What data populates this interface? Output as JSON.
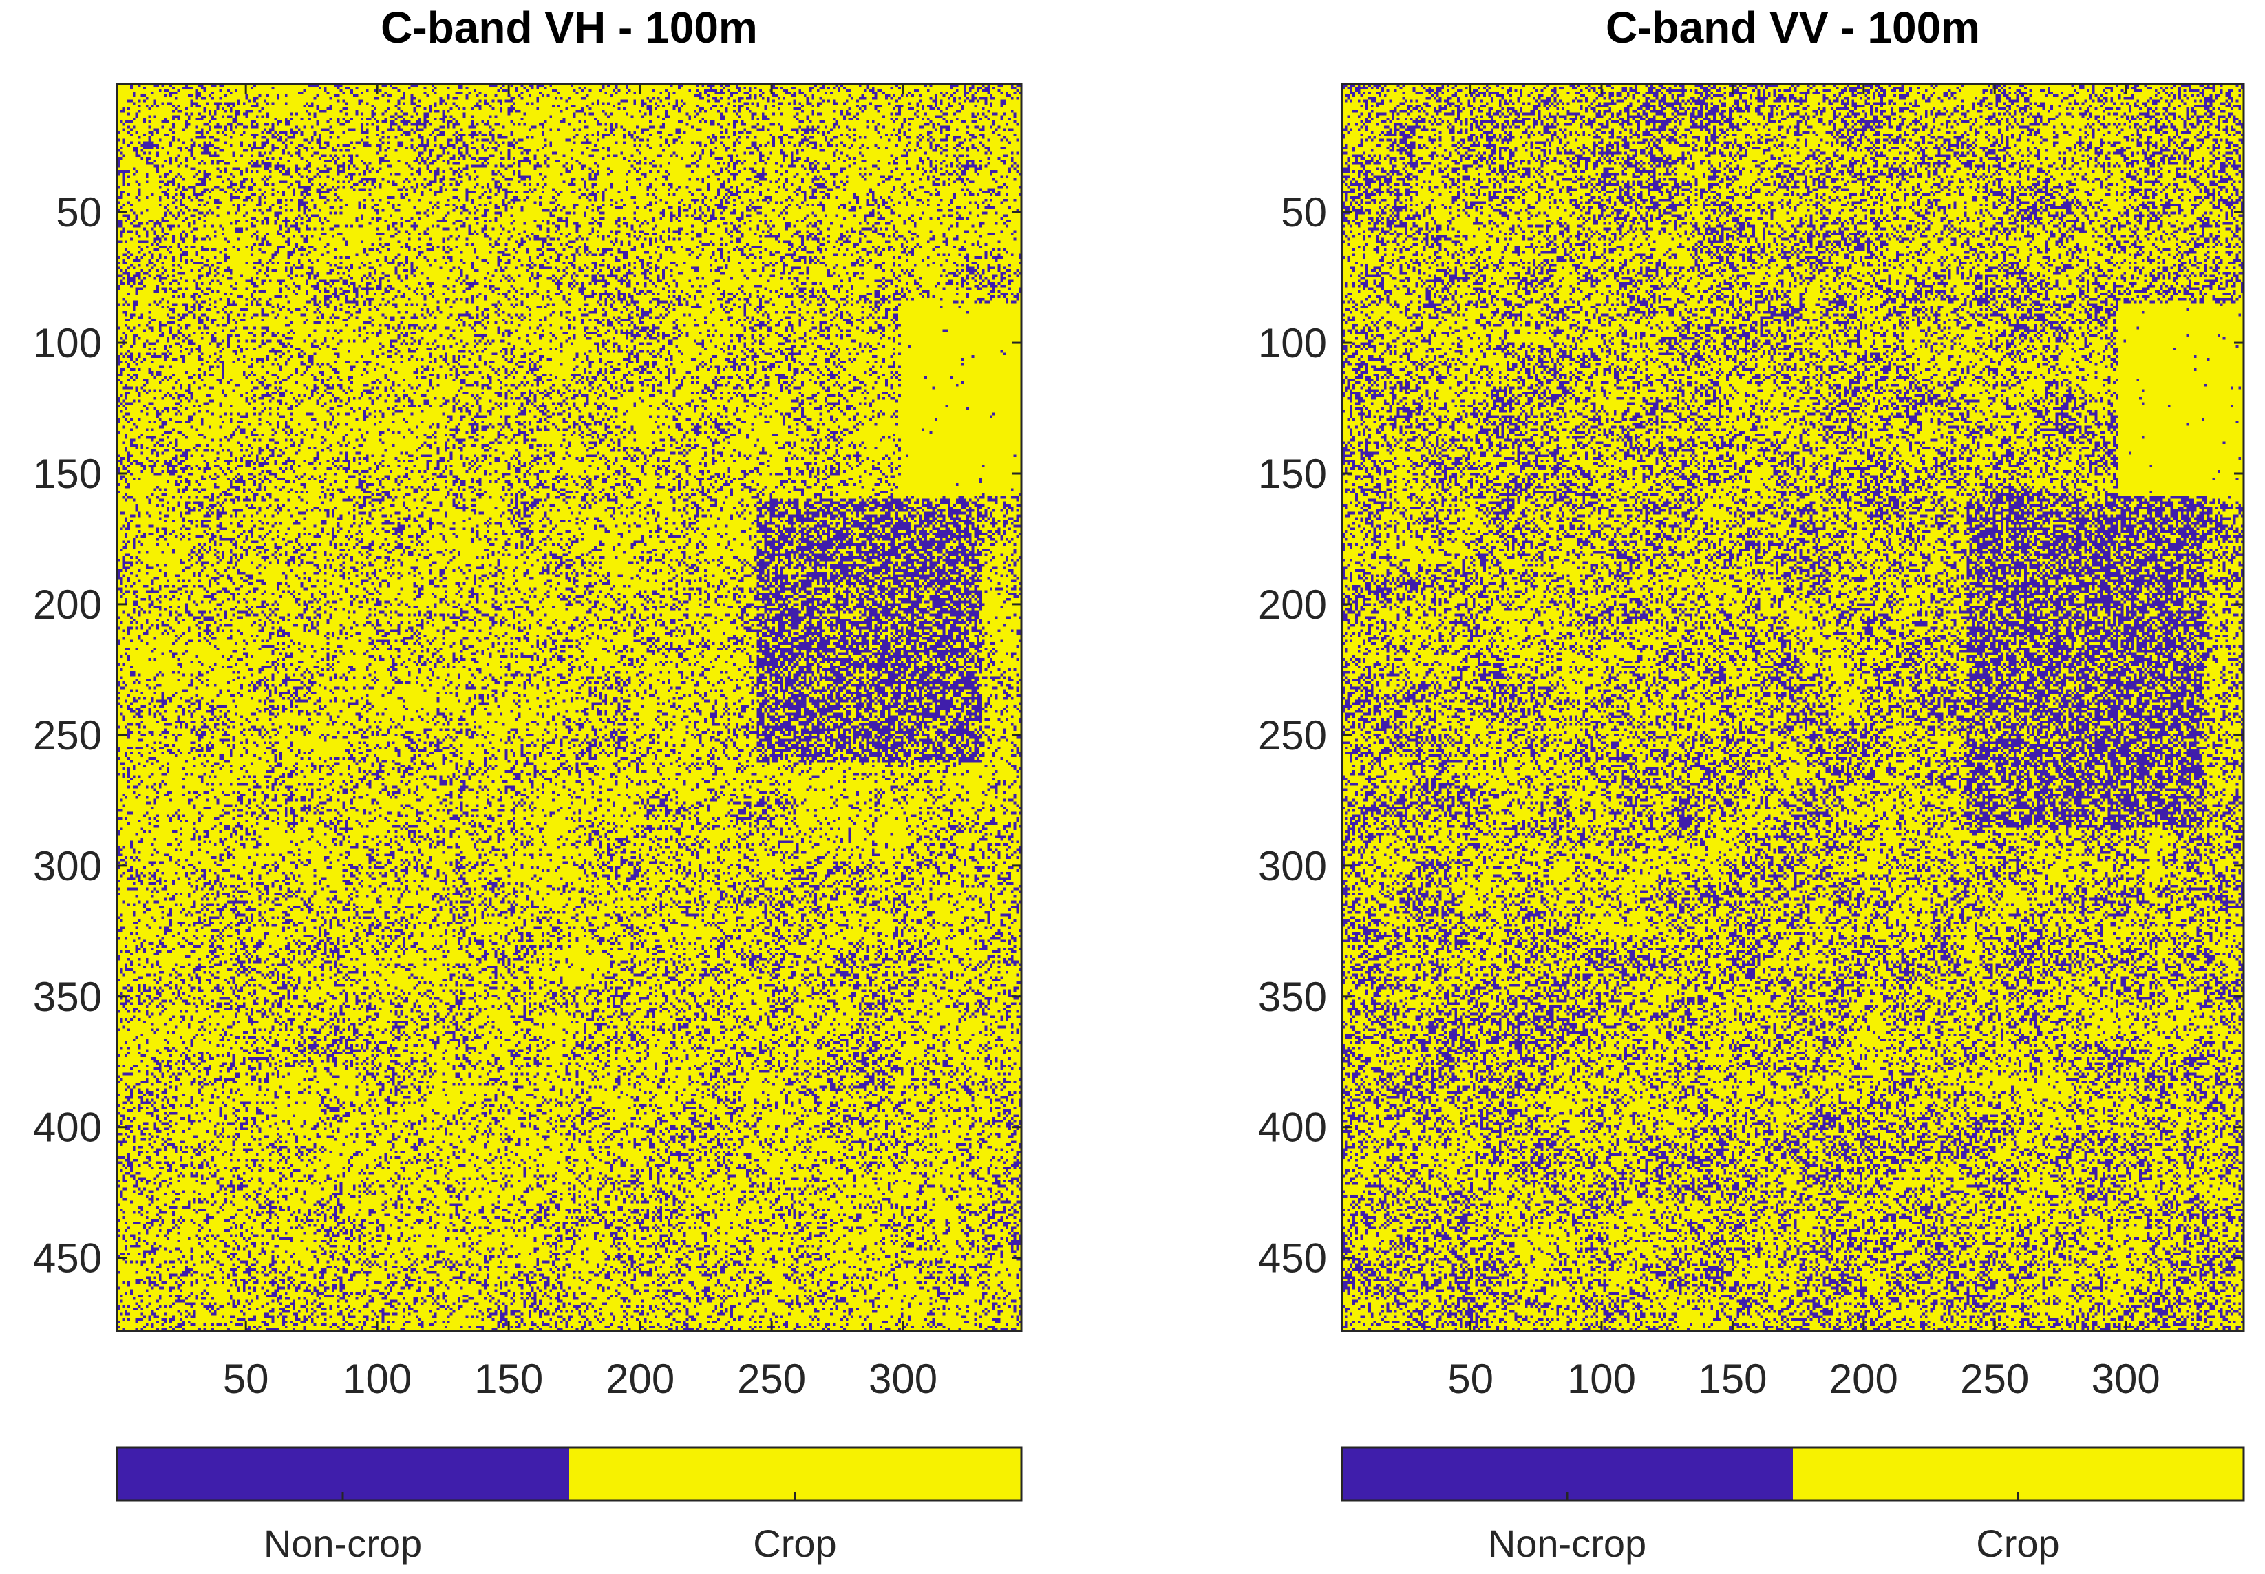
{
  "figure": {
    "colors": {
      "non_crop": "#3F1EAB",
      "crop": "#F7F200",
      "axis": "#262626",
      "background": "#FFFFFF"
    }
  },
  "chart_data": [
    {
      "type": "heatmap",
      "title": "C-band VH - 100m",
      "xlabel": "",
      "ylabel": "",
      "xlim": [
        1,
        345
      ],
      "ylim": [
        478,
        1
      ],
      "x_ticks": [
        50,
        100,
        150,
        200,
        250,
        300
      ],
      "y_ticks": [
        50,
        100,
        150,
        200,
        250,
        300,
        350,
        400,
        450
      ],
      "x_tick_labels": [
        "50",
        "100",
        "150",
        "200",
        "250",
        "300"
      ],
      "y_tick_labels": [
        "50",
        "100",
        "150",
        "200",
        "250",
        "300",
        "350",
        "400",
        "450"
      ],
      "classes": [
        {
          "value": 0,
          "label": "Non-crop",
          "color": "#3F1EAB"
        },
        {
          "value": 1,
          "label": "Crop",
          "color": "#F7F200"
        }
      ],
      "colorbar": {
        "position": "bottom",
        "labels": [
          "Non-crop",
          "Crop"
        ]
      },
      "dense_non_crop_region": {
        "x_range": [
          245,
          330
        ],
        "y_range": [
          160,
          260
        ]
      },
      "crop_block_region": {
        "x_range": [
          300,
          345
        ],
        "y_range": [
          85,
          158
        ]
      },
      "non_crop_fraction_approx": 0.22
    },
    {
      "type": "heatmap",
      "title": "C-band VV - 100m",
      "xlabel": "",
      "ylabel": "",
      "xlim": [
        1,
        345
      ],
      "ylim": [
        478,
        1
      ],
      "x_ticks": [
        50,
        100,
        150,
        200,
        250,
        300
      ],
      "y_ticks": [
        50,
        100,
        150,
        200,
        250,
        300,
        350,
        400,
        450
      ],
      "x_tick_labels": [
        "50",
        "100",
        "150",
        "200",
        "250",
        "300"
      ],
      "y_tick_labels": [
        "50",
        "100",
        "150",
        "200",
        "250",
        "300",
        "350",
        "400",
        "450"
      ],
      "classes": [
        {
          "value": 0,
          "label": "Non-crop",
          "color": "#3F1EAB"
        },
        {
          "value": 1,
          "label": "Crop",
          "color": "#F7F200"
        }
      ],
      "colorbar": {
        "position": "bottom",
        "labels": [
          "Non-crop",
          "Crop"
        ]
      },
      "dense_non_crop_region": {
        "x_range": [
          240,
          330
        ],
        "y_range": [
          158,
          285
        ]
      },
      "crop_block_region": {
        "x_range": [
          298,
          345
        ],
        "y_range": [
          85,
          158
        ]
      },
      "non_crop_fraction_approx": 0.32
    }
  ]
}
